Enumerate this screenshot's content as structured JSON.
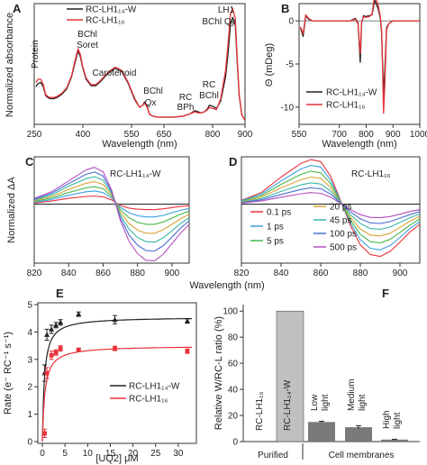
{
  "chart_data": [
    {
      "panel": "A",
      "type": "line",
      "xlabel": "Wavelength (nm)",
      "ylabel": "Normalized absorbance",
      "xlim": [
        250,
        900
      ],
      "xticks": [
        "250",
        "400",
        "550",
        "650",
        "800",
        "900"
      ],
      "legend": {
        "placement": "top-center",
        "entries": [
          "RC-LH1₁₄-W",
          "RC-LH1₁₆"
        ]
      },
      "annotations": [
        "Protein",
        "BChl",
        "Soret",
        "Carotenoid",
        "BChl",
        "Qx",
        "RC",
        "BPh",
        "RC",
        "BChl",
        "LH1",
        "BChl Qy"
      ],
      "colors": [
        "#222222",
        "#e8323a"
      ],
      "series": [
        {
          "x": [
            255,
            262,
            270,
            278,
            285,
            292,
            300,
            310,
            320,
            335,
            350,
            365,
            378,
            385,
            392,
            400,
            410,
            425,
            440,
            455,
            470,
            485,
            500,
            520,
            540,
            560,
            575,
            585,
            590,
            598,
            605,
            615,
            630,
            650,
            680,
            710,
            730,
            745,
            755,
            765,
            775,
            785,
            790,
            800,
            812,
            825,
            840,
            848,
            855,
            862,
            870,
            876,
            882,
            890,
            900
          ],
          "y": [
            0.33,
            0.36,
            0.37,
            0.33,
            0.25,
            0.23,
            0.22,
            0.22,
            0.23,
            0.26,
            0.31,
            0.42,
            0.58,
            0.66,
            0.61,
            0.5,
            0.4,
            0.34,
            0.34,
            0.38,
            0.43,
            0.47,
            0.5,
            0.47,
            0.36,
            0.21,
            0.14,
            0.16,
            0.19,
            0.15,
            0.08,
            0.06,
            0.05,
            0.05,
            0.05,
            0.06,
            0.08,
            0.11,
            0.1,
            0.09,
            0.1,
            0.13,
            0.16,
            0.15,
            0.13,
            0.2,
            0.42,
            0.65,
            0.9,
            0.97,
            0.9,
            0.55,
            0.25,
            0.07,
            0.02
          ]
        },
        {
          "x": [
            255,
            262,
            270,
            278,
            285,
            292,
            300,
            310,
            320,
            335,
            350,
            365,
            378,
            385,
            392,
            400,
            410,
            425,
            440,
            455,
            470,
            485,
            500,
            520,
            540,
            560,
            575,
            585,
            590,
            598,
            605,
            615,
            630,
            650,
            680,
            710,
            730,
            745,
            755,
            765,
            775,
            785,
            790,
            800,
            812,
            825,
            840,
            848,
            855,
            862,
            870,
            876,
            882,
            890,
            900
          ],
          "y": [
            0.37,
            0.4,
            0.4,
            0.35,
            0.26,
            0.24,
            0.23,
            0.23,
            0.24,
            0.27,
            0.32,
            0.43,
            0.6,
            0.68,
            0.63,
            0.51,
            0.41,
            0.35,
            0.35,
            0.39,
            0.44,
            0.48,
            0.51,
            0.48,
            0.37,
            0.22,
            0.14,
            0.16,
            0.18,
            0.14,
            0.08,
            0.06,
            0.05,
            0.05,
            0.05,
            0.06,
            0.08,
            0.1,
            0.09,
            0.09,
            0.1,
            0.12,
            0.14,
            0.13,
            0.12,
            0.22,
            0.48,
            0.74,
            1.0,
            1.05,
            0.96,
            0.58,
            0.26,
            0.07,
            0.02
          ]
        }
      ]
    },
    {
      "panel": "B",
      "type": "line",
      "xlabel": "Wavelength (nm)",
      "ylabel": "Θ (mDeg)",
      "xlim": [
        550,
        1000
      ],
      "ylim": [
        -12,
        2
      ],
      "xticks": [
        "550",
        "700",
        "800",
        "900",
        "1000"
      ],
      "yticks": [
        "-10",
        "-5",
        "0"
      ],
      "legend": {
        "placement": "bottom-right",
        "entries": [
          "RC-LH1₁₄-W",
          "RC-LH1₁₆"
        ]
      },
      "colors": [
        "#222222",
        "#e8323a"
      ],
      "series": [
        {
          "x": [
            555,
            565,
            575,
            585,
            600,
            630,
            680,
            740,
            760,
            770,
            778,
            783,
            790,
            798,
            812,
            822,
            832,
            845,
            853,
            858,
            865,
            870,
            876,
            885,
            900,
            920,
            950,
            1000
          ],
          "y": [
            -0.8,
            -1.8,
            0.6,
            0.2,
            0,
            0,
            0,
            0,
            0.3,
            -0.3,
            -4.8,
            -0.3,
            0.6,
            0.5,
            0.6,
            0.7,
            2.4,
            1.4,
            0.3,
            -1.5,
            -8.6,
            -5.5,
            -0.8,
            -0.3,
            0,
            0,
            0,
            0
          ]
        },
        {
          "x": [
            555,
            565,
            575,
            585,
            600,
            630,
            680,
            740,
            760,
            770,
            778,
            783,
            790,
            798,
            812,
            822,
            832,
            845,
            853,
            858,
            865,
            870,
            876,
            885,
            900,
            920,
            950,
            1000
          ],
          "y": [
            -0.7,
            -1.5,
            0.7,
            0.3,
            0,
            0,
            0,
            0,
            0.2,
            -0.4,
            -3.8,
            -0.2,
            0.5,
            0.4,
            0.5,
            0.8,
            3.0,
            1.8,
            0.5,
            -1.2,
            -10.7,
            -7.0,
            -1.0,
            -0.3,
            0,
            0,
            0,
            0
          ]
        }
      ]
    },
    {
      "panel": "C",
      "type": "line",
      "title": "RC-LH1₁₄-W",
      "xlabel": "Wavelength (nm)",
      "ylabel": "Normalized ΔA",
      "xlim": [
        820,
        910
      ],
      "xticks": [
        "820",
        "840",
        "860",
        "880",
        "900"
      ],
      "delays": [
        "0.1 ps",
        "1 ps",
        "5 ps",
        "20 ps",
        "45 ps",
        "100 ps",
        "500 ps"
      ],
      "colors": [
        "#e8323a",
        "#3aa0e0",
        "#47b84a",
        "#d8a437",
        "#38b7a5",
        "#4a6fd0",
        "#b24fc0"
      ],
      "x": [
        820,
        830,
        840,
        850,
        855,
        860,
        865,
        870,
        875,
        880,
        885,
        890,
        895,
        900,
        905,
        910
      ],
      "series": [
        {
          "name": "0.1 ps",
          "y": [
            0.03,
            0.08,
            0.15,
            0.2,
            0.21,
            0.19,
            0.11,
            -0.03,
            -0.1,
            -0.13,
            -0.14,
            -0.14,
            -0.12,
            -0.09,
            -0.06,
            -0.04
          ]
        },
        {
          "name": "1 ps",
          "y": [
            0.05,
            0.12,
            0.23,
            0.32,
            0.34,
            0.3,
            0.16,
            -0.08,
            -0.22,
            -0.3,
            -0.33,
            -0.33,
            -0.29,
            -0.22,
            -0.16,
            -0.11
          ]
        },
        {
          "name": "5 ps",
          "y": [
            0.07,
            0.16,
            0.3,
            0.42,
            0.45,
            0.4,
            0.2,
            -0.14,
            -0.35,
            -0.47,
            -0.52,
            -0.52,
            -0.46,
            -0.36,
            -0.26,
            -0.18
          ]
        },
        {
          "name": "20 ps",
          "y": [
            0.09,
            0.2,
            0.38,
            0.54,
            0.58,
            0.51,
            0.24,
            -0.21,
            -0.5,
            -0.67,
            -0.75,
            -0.75,
            -0.66,
            -0.52,
            -0.38,
            -0.26
          ]
        },
        {
          "name": "45 ps",
          "y": [
            0.11,
            0.24,
            0.46,
            0.66,
            0.71,
            0.62,
            0.28,
            -0.28,
            -0.64,
            -0.86,
            -0.97,
            -0.98,
            -0.87,
            -0.69,
            -0.5,
            -0.35
          ]
        },
        {
          "name": "100 ps",
          "y": [
            0.13,
            0.28,
            0.53,
            0.77,
            0.83,
            0.73,
            0.32,
            -0.35,
            -0.79,
            -1.06,
            -1.2,
            -1.21,
            -1.07,
            -0.85,
            -0.62,
            -0.43
          ]
        },
        {
          "name": "500 ps",
          "y": [
            0.15,
            0.32,
            0.6,
            0.88,
            0.95,
            0.84,
            0.36,
            -0.42,
            -0.95,
            -1.28,
            -1.45,
            -1.46,
            -1.29,
            -1.02,
            -0.75,
            -0.52
          ]
        }
      ]
    },
    {
      "panel": "D",
      "type": "line",
      "title": "RC-LH1₁₆",
      "xlabel": "Wavelength (nm)",
      "xlim": [
        820,
        910
      ],
      "xticks": [
        "820",
        "840",
        "860",
        "880",
        "900"
      ],
      "legend": {
        "placement": "center-left",
        "entries": [
          "0.1 ps",
          "1 ps",
          "5 ps",
          "20 ps",
          "45 ps",
          "100 ps",
          "500 ps"
        ]
      },
      "colors": [
        "#e8323a",
        "#3aa0e0",
        "#47b84a",
        "#d8a437",
        "#38b7a5",
        "#4a6fd0",
        "#b24fc0"
      ],
      "x": [
        820,
        830,
        840,
        850,
        855,
        860,
        865,
        870,
        875,
        880,
        885,
        890,
        895,
        900,
        905,
        910
      ],
      "series": [
        {
          "name": "0.1 ps",
          "y": [
            0.1,
            0.3,
            0.7,
            1.05,
            1.15,
            1.1,
            0.72,
            0.1,
            -0.55,
            -1.05,
            -1.3,
            -1.35,
            -1.22,
            -0.98,
            -0.72,
            -0.52
          ]
        },
        {
          "name": "1 ps",
          "y": [
            0.09,
            0.26,
            0.6,
            0.91,
            1.0,
            0.96,
            0.62,
            0.08,
            -0.48,
            -0.92,
            -1.14,
            -1.18,
            -1.07,
            -0.86,
            -0.63,
            -0.45
          ]
        },
        {
          "name": "5 ps",
          "y": [
            0.07,
            0.22,
            0.51,
            0.77,
            0.85,
            0.81,
            0.53,
            0.06,
            -0.41,
            -0.78,
            -0.97,
            -1.0,
            -0.91,
            -0.73,
            -0.54,
            -0.38
          ]
        },
        {
          "name": "20 ps",
          "y": [
            0.06,
            0.18,
            0.42,
            0.63,
            0.7,
            0.67,
            0.43,
            0.05,
            -0.34,
            -0.64,
            -0.8,
            -0.82,
            -0.75,
            -0.6,
            -0.44,
            -0.31
          ]
        },
        {
          "name": "45 ps",
          "y": [
            0.05,
            0.14,
            0.33,
            0.5,
            0.55,
            0.52,
            0.34,
            0.04,
            -0.27,
            -0.5,
            -0.63,
            -0.65,
            -0.59,
            -0.47,
            -0.35,
            -0.25
          ]
        },
        {
          "name": "100 ps",
          "y": [
            0.04,
            0.11,
            0.25,
            0.38,
            0.42,
            0.4,
            0.26,
            0.03,
            -0.2,
            -0.38,
            -0.48,
            -0.5,
            -0.45,
            -0.36,
            -0.27,
            -0.19
          ]
        },
        {
          "name": "500 ps",
          "y": [
            0.03,
            0.08,
            0.18,
            0.27,
            0.3,
            0.28,
            0.18,
            0.02,
            -0.14,
            -0.27,
            -0.34,
            -0.35,
            -0.32,
            -0.26,
            -0.19,
            -0.14
          ]
        }
      ]
    },
    {
      "panel": "E",
      "type": "scatter",
      "xlabel": "[UQ2] μM",
      "ylabel": "Rate (e⁻ RC⁻¹ s⁻¹)",
      "xlim": [
        -1,
        34
      ],
      "ylim": [
        0,
        5
      ],
      "xticks": [
        "0",
        "5",
        "10",
        "15",
        "20",
        "25",
        "30"
      ],
      "yticks": [
        "0",
        "1",
        "2",
        "3",
        "4",
        "5"
      ],
      "legend": {
        "placement": "center-right",
        "entries": [
          "RC-LH1₁₄-W",
          "RC-LH1₁₆"
        ]
      },
      "colors": [
        "#222222",
        "#e8323a"
      ],
      "series": [
        {
          "x": [
            0.5,
            1,
            2,
            3,
            4,
            8,
            16,
            32
          ],
          "y": [
            2.5,
            3.9,
            4.1,
            4.25,
            4.35,
            4.65,
            4.45,
            4.4
          ],
          "err": [
            0.3,
            0.2,
            0.15,
            0.1,
            0.1,
            0.08,
            0.15,
            0.08
          ],
          "fit_vmax": 4.55,
          "fit_km": 0.45
        },
        {
          "x": [
            0.5,
            1,
            2,
            3,
            4,
            8,
            16,
            32
          ],
          "y": [
            0.3,
            2.5,
            3.15,
            3.25,
            3.4,
            3.35,
            3.4,
            3.3
          ],
          "err": [
            0.15,
            0.2,
            0.15,
            0.1,
            0.1,
            0.06,
            0.08,
            0.08
          ],
          "fit_vmax": 3.5,
          "fit_km": 0.55
        }
      ]
    },
    {
      "panel": "F",
      "type": "bar",
      "ylabel": "Relative W/RC-L ratio (%)",
      "ylim": [
        0,
        105
      ],
      "yticks": [
        "0",
        "20",
        "40",
        "60",
        "80",
        "100"
      ],
      "categories": [
        "RC-LH1₁₆",
        "RC-LH1₁₄-W",
        "Low light",
        "Medium light",
        "High light"
      ],
      "values": [
        0,
        100,
        15,
        11,
        1.5
      ],
      "errors": [
        0,
        0,
        0.6,
        1.2,
        0.3
      ],
      "groups": [
        {
          "label": "Purified",
          "members": [
            0,
            1
          ]
        },
        {
          "label": "Cell membranes",
          "members": [
            2,
            3,
            4
          ]
        }
      ],
      "colors": [
        "#c0c0c0",
        "#7a7a7a"
      ]
    }
  ],
  "labels": {
    "A": "A",
    "B": "B",
    "C": "C",
    "D": "D",
    "E": "E",
    "F": "F"
  },
  "texts": {
    "a_protein": "Protein",
    "a_bchl1": "BChl",
    "a_soret": "Soret",
    "a_car": "Carotenoid",
    "a_bchl2": "BChl",
    "a_qx": "Qx",
    "a_rc1": "RC",
    "a_bph": "BPh",
    "a_rc2": "RC",
    "a_bchl3": "BChl",
    "a_lh1": "LH1",
    "a_bchlq": "BChl Qy",
    "cd_xlabel": "Wavelength (nm)",
    "f_lab1": "RC-LH1₁₆",
    "f_lab2": "RC-LH1₁₄-W",
    "f_lab3a": "Low",
    "f_lab3b": "light",
    "f_lab4a": "Medium",
    "f_lab4b": "light",
    "f_lab5a": "High",
    "f_lab5b": "light",
    "f_grp1": "Purified",
    "f_grp2": "Cell membranes"
  }
}
